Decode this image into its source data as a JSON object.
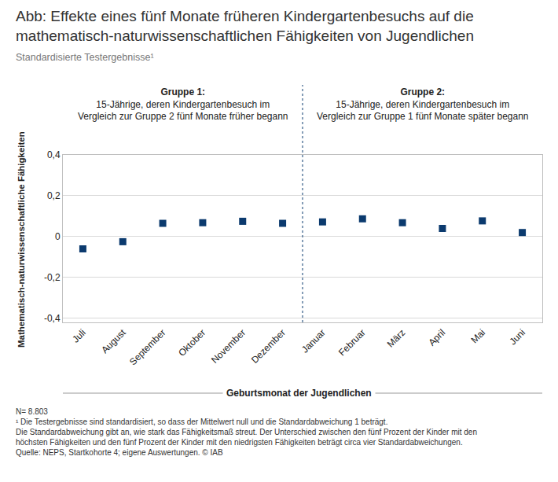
{
  "chart_data": {
    "type": "scatter",
    "title": [
      "Abb: Effekte eines fünf Monate früheren Kindergartenbesuchs auf die",
      "mathematisch-naturwissenschaftlichen Fähigkeiten von Jugendlichen"
    ],
    "subtitle": "Standardisierte Testergebnisse¹",
    "x_label": "Geburtsmonat der Jugendlichen",
    "y_label": "Mathematisch-naturwissenschaftliche Fähigkeiten",
    "groups": [
      {
        "title": "Gruppe 1:",
        "lines": [
          "15-Jährige, deren Kindergartenbesuch im",
          "Vergleich zur Gruppe 2 fünf Monate früher begann"
        ]
      },
      {
        "title": "Gruppe 2:",
        "lines": [
          "15-Jährige, deren Kindergartenbesuch im",
          "Vergleich zur Gruppe 1 fünf Monate später begann"
        ]
      }
    ],
    "categories": [
      "Juli",
      "August",
      "September",
      "Oktober",
      "November",
      "Dezember",
      "Januar",
      "Februar",
      "März",
      "April",
      "Mai",
      "Juni"
    ],
    "values": [
      -0.06,
      -0.025,
      0.065,
      0.068,
      0.075,
      0.065,
      0.072,
      0.087,
      0.068,
      0.04,
      0.077,
      0.02
    ],
    "color": "#0b3a6e",
    "marker": "square",
    "ylim": [
      -0.42,
      0.4
    ],
    "yticks": [
      {
        "value": -0.4,
        "label": "-0,4"
      },
      {
        "value": -0.2,
        "label": "-0,2"
      },
      0,
      {
        "value": 0.2,
        "label": "0,2"
      },
      {
        "value": 0.4,
        "label": "0,4"
      }
    ],
    "grid": true,
    "notes": [
      "N= 8.803",
      "¹ Die Testergebnisse sind standardisiert, so dass der Mittelwert null und die Standardabweichung 1 beträgt.",
      "Die Standardabweichung gibt an, wie stark das Fähigkeitsmaß streut. Der Unterschied zwischen den fünf Prozent der Kinder mit den",
      "höchsten Fähigkeiten und den fünf Prozent der Kinder mit den niedrigsten Fähigkeiten beträgt circa vier Standardabweichungen.",
      "Quelle: NEPS, Startkohorte 4; eigene Auswertungen. © IAB"
    ]
  }
}
